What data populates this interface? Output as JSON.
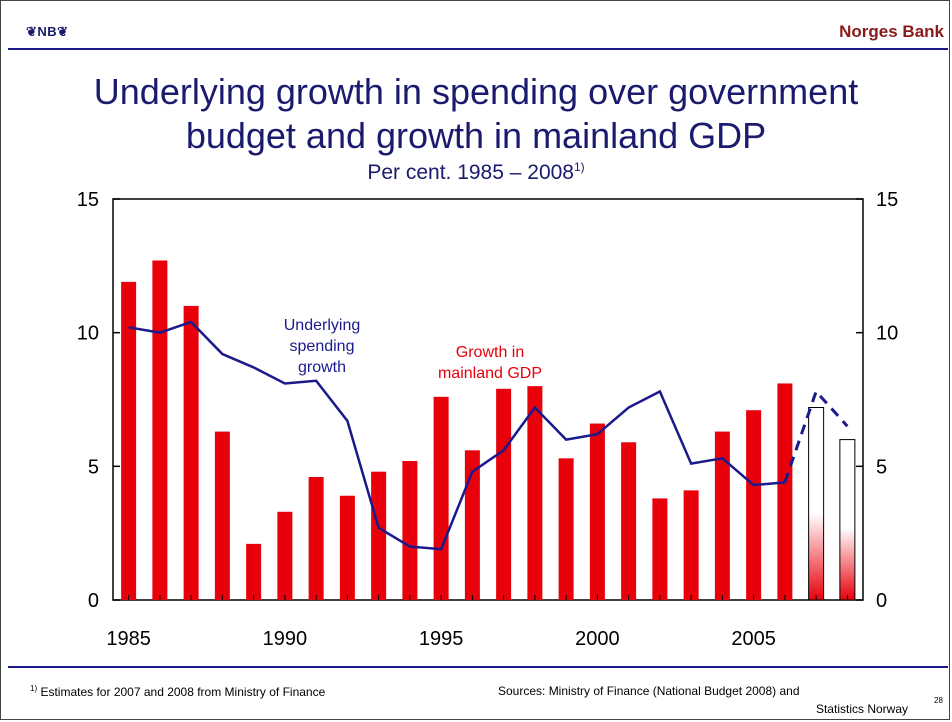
{
  "header": {
    "logo": "❦NB❦",
    "brand": "Norges Bank"
  },
  "title_line1": "Underlying growth in spending over government",
  "title_line2": "budget and growth in mainland GDP",
  "subtitle": "Per cent. 1985 – 2008",
  "subtitle_note": "1)",
  "footnote_mark": "1)",
  "footnote": " Estimates for 2007 and 2008 from Ministry of Finance",
  "sources_line1": "Sources: Ministry of Finance (National Budget 2008) and",
  "sources_line2": "Statistics Norway",
  "page_number": "28",
  "chart_data": {
    "type": "bar",
    "xlim": [
      1984.5,
      2008.5
    ],
    "ylim": [
      0,
      15
    ],
    "left_ticks": [
      "0",
      "5",
      "10",
      "15"
    ],
    "right_ticks": [
      "0",
      "5",
      "10",
      "15"
    ],
    "x_ticks": [
      "1985",
      "1990",
      "1995",
      "2000",
      "2005"
    ],
    "x": [
      1985,
      1986,
      1987,
      1988,
      1989,
      1990,
      1991,
      1992,
      1993,
      1994,
      1995,
      1996,
      1997,
      1998,
      1999,
      2000,
      2001,
      2002,
      2003,
      2004,
      2005,
      2006,
      2007,
      2008
    ],
    "series": [
      {
        "name": "Growth in mainland GDP",
        "type": "bar",
        "color": "#e8000b",
        "label_lines": [
          "Growth in",
          "mainland GDP"
        ],
        "values": [
          11.9,
          12.7,
          11.0,
          6.3,
          2.1,
          3.3,
          4.6,
          3.9,
          4.8,
          5.2,
          7.6,
          5.6,
          7.9,
          8.0,
          5.3,
          6.6,
          5.9,
          3.8,
          4.1,
          6.3,
          7.1,
          8.1,
          7.2,
          6.0
        ],
        "estimate_from": 2007
      },
      {
        "name": "Underlying spending growth",
        "type": "line",
        "color": "#1a1a8c",
        "label_lines": [
          "Underlying",
          "spending",
          "growth"
        ],
        "values": [
          10.2,
          10.0,
          10.4,
          9.2,
          8.7,
          8.1,
          8.2,
          6.7,
          2.7,
          2.0,
          1.9,
          4.8,
          5.6,
          7.2,
          6.0,
          6.2,
          7.2,
          7.8,
          5.1,
          5.3,
          4.3,
          4.4,
          7.8,
          6.5
        ],
        "estimate_from": 2007
      }
    ]
  }
}
